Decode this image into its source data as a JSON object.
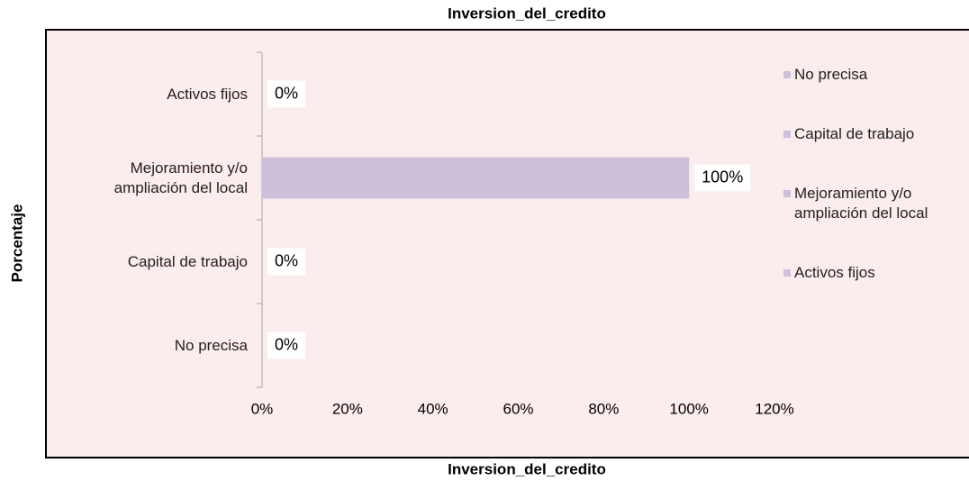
{
  "chart_data": {
    "type": "bar",
    "orientation": "horizontal",
    "title": "Inversion_del_credito",
    "x_label": "Inversion_del_credito",
    "y_label": "Porcentaje",
    "categories": [
      "No precisa",
      "Capital de trabajo",
      "Mejoramiento y/o ampliación del local",
      "Activos fijos"
    ],
    "values": [
      0,
      0,
      100,
      0
    ],
    "value_labels": [
      "0%",
      "0%",
      "100%",
      "0%"
    ],
    "color": "#ccc0da",
    "xlim": [
      0,
      120
    ],
    "xticks": [
      {
        "value": 0,
        "label": "0%"
      },
      {
        "value": 20,
        "label": "20%"
      },
      {
        "value": 40,
        "label": "40%"
      },
      {
        "value": 60,
        "label": "60%"
      },
      {
        "value": 80,
        "label": "80%"
      },
      {
        "value": 100,
        "label": "100%"
      },
      {
        "value": 120,
        "label": "120%"
      }
    ],
    "grid": false,
    "legend": "right"
  }
}
